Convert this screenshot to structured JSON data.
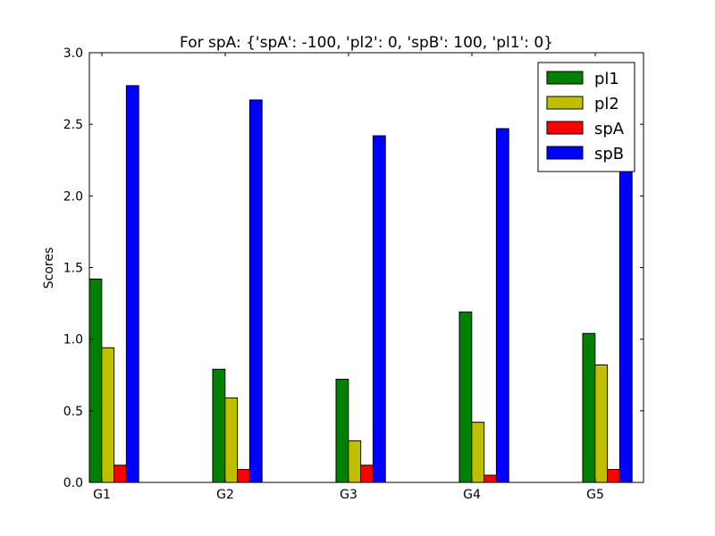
{
  "chart_data": {
    "type": "bar",
    "title": "For spA: {'spA': -100, 'pl2': 0, 'spB': 100, 'pl1': 0}",
    "xlabel": "",
    "ylabel": "Scores",
    "categories": [
      "G1",
      "G2",
      "G3",
      "G4",
      "G5"
    ],
    "ylim": [
      0,
      3.0
    ],
    "yticks": [
      "0.0",
      "0.5",
      "1.0",
      "1.5",
      "2.0",
      "2.5",
      "3.0"
    ],
    "grid": false,
    "legend_position": "top-right",
    "series": [
      {
        "name": "pl1",
        "color": "#008000",
        "values": [
          1.42,
          0.79,
          0.72,
          1.19,
          1.04
        ]
      },
      {
        "name": "pl2",
        "color": "#bfbf00",
        "values": [
          0.94,
          0.59,
          0.29,
          0.42,
          0.82
        ]
      },
      {
        "name": "spA",
        "color": "#ff0000",
        "values": [
          0.12,
          0.09,
          0.12,
          0.05,
          0.09
        ]
      },
      {
        "name": "spB",
        "color": "#0000ff",
        "values": [
          2.77,
          2.67,
          2.42,
          2.47,
          2.42
        ]
      }
    ]
  }
}
